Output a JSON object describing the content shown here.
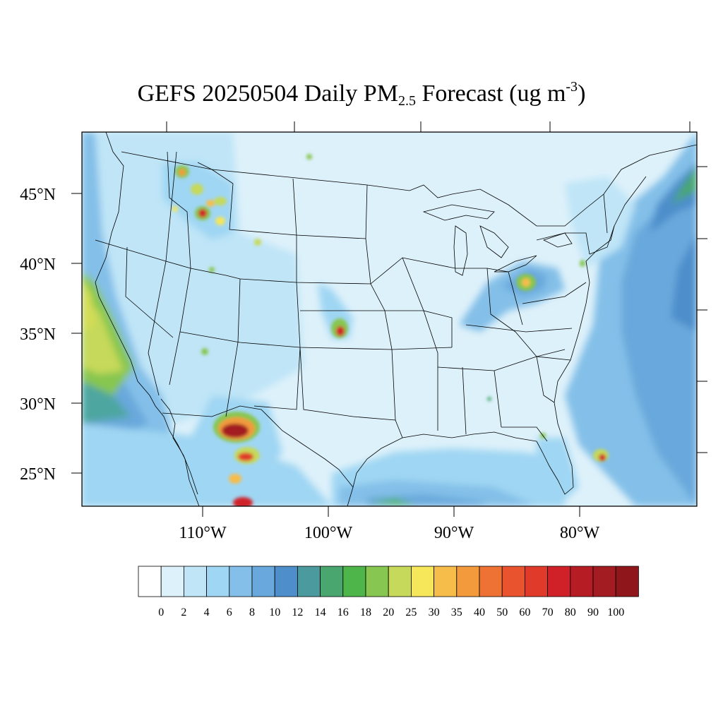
{
  "title": {
    "prefix": "GEFS 20250504 Daily PM",
    "sub": "2.5",
    "mid": " Forecast (ug m",
    "sup": "-3",
    "suffix": ")"
  },
  "map": {
    "lat_labels": [
      "45°N",
      "40°N",
      "35°N",
      "30°N",
      "25°N"
    ],
    "lon_labels": [
      "110°W",
      "100°W",
      "90°W",
      "80°W"
    ]
  },
  "colorbar": {
    "labels": [
      "0",
      "2",
      "4",
      "6",
      "8",
      "10",
      "12",
      "14",
      "16",
      "18",
      "20",
      "25",
      "30",
      "35",
      "40",
      "50",
      "60",
      "70",
      "80",
      "90",
      "100"
    ],
    "colors": [
      "#ffffff",
      "#ddf1fa",
      "#bfe5f7",
      "#9fd6f3",
      "#83bfe8",
      "#69a8dc",
      "#4d8ecb",
      "#4b9a9e",
      "#49a66f",
      "#4db549",
      "#87c650",
      "#c6d95a",
      "#f5e65a",
      "#f6bd4b",
      "#f39a3d",
      "#ee7233",
      "#e9532e",
      "#e03a2a",
      "#d02129",
      "#b51c23",
      "#a31c22",
      "#8f171b"
    ]
  }
}
